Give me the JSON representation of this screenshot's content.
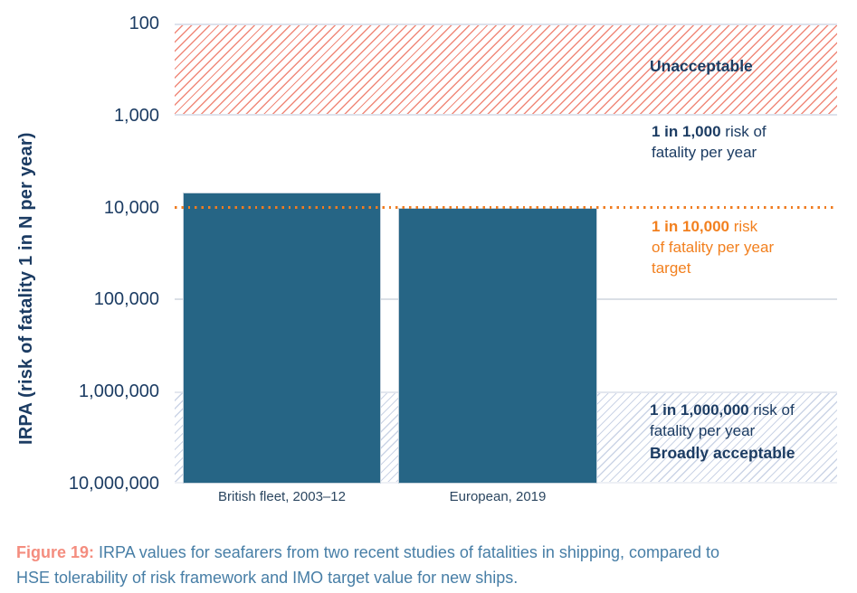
{
  "figure": {
    "caption_label": "Figure 19:",
    "caption_text": "IRPA values for seafarers from two recent studies of fatalities in shipping, compared to HSE tolerability of risk framework and IMO target value for new ships."
  },
  "chart_data": {
    "type": "bar",
    "title": "",
    "ylabel": "IRPA (risk of fatality 1 in N per year)",
    "y_scale": "logarithmic, inverted (risk expressed as 1 in N per year; higher bar = higher risk)",
    "y_ticks": [
      "100",
      "1,000",
      "10,000",
      "100,000",
      "1,000,000",
      "10,000,000"
    ],
    "y_tick_values": [
      100,
      1000,
      10000,
      100000,
      1000000,
      10000000
    ],
    "categories": [
      "British fleet, 2003–12",
      "European, 2019"
    ],
    "values_1_in_N": [
      6800,
      10000
    ],
    "bar_color": "#266585",
    "grid_values": [
      100000
    ],
    "bands": [
      {
        "name": "unacceptable",
        "from": 100,
        "to": 1000,
        "hatch_color": "#f0897a",
        "label": "Unacceptable"
      },
      {
        "name": "broadly-acceptable",
        "from": 1000000,
        "to": 10000000,
        "hatch_color": "#cbd4e6",
        "label": "Broadly acceptable"
      }
    ],
    "target_line": {
      "value": 10000,
      "color": "#ef7d22",
      "style": "dotted"
    }
  },
  "annotations": {
    "unacceptable_title": "Unacceptable",
    "tolerable_upper": {
      "bold": "1 in 1,000",
      "rest": " risk of",
      "line2": "fatality per year"
    },
    "target": {
      "bold": "1 in 10,000",
      "rest": " risk",
      "line2": "of fatality per year",
      "line3": "target"
    },
    "broadly": {
      "bold": "1 in 1,000,000",
      "rest": " risk of",
      "line2": "fatality per year",
      "title": "Broadly acceptable"
    }
  },
  "colors": {
    "bar": "#266585",
    "navy_text": "#1c3c63",
    "orange": "#f2801f",
    "red_hatch": "#f0897a",
    "blue_hatch": "#cbd4e6",
    "caption_label": "#f48d7f",
    "caption_text": "#477ea6"
  }
}
